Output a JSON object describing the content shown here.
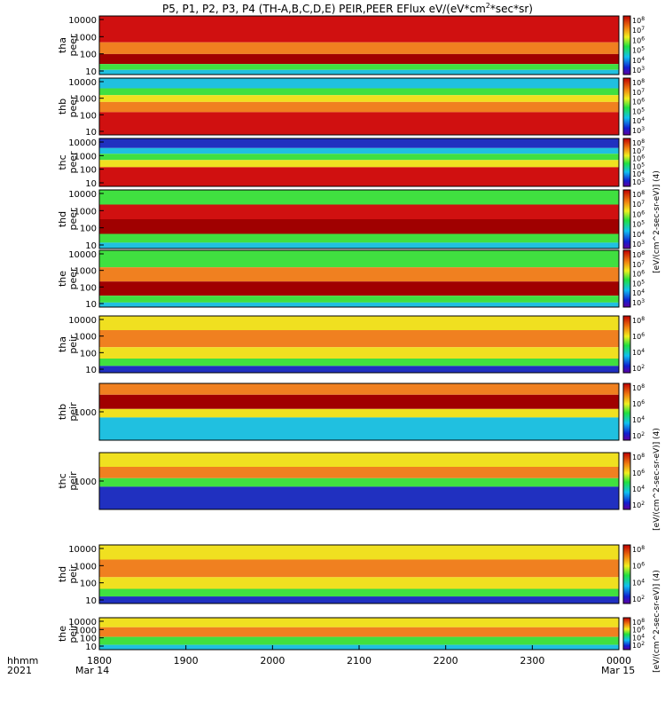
{
  "title": "P5, P1, P2, P3, P4 (TH-A,B,C,D,E) PEIR,PEER EFlux eV/(eV*cm",
  "title_sup": "2",
  "title_tail": "*sec*sr)",
  "colorbar_unit_peer": "[eV/(cm^2-sec-sr-eV)] (4)",
  "colorbar_unit_peir": "[eV/(cm^2-sec-sr-eV)] (4)",
  "colorbar_unit_last": "[eV/(cm^2-sec-sr-eV)] (4)",
  "footer": {
    "left_label_1": "hhmm",
    "left_label_2": "2021",
    "date_start": "Mar 14",
    "date_end": "Mar 15"
  },
  "chart_data": {
    "type": "heatmap",
    "x_ticks": [
      "1800",
      "1900",
      "2000",
      "2100",
      "2200",
      "2300",
      "0000"
    ],
    "x_range_hours": [
      18,
      24
    ],
    "colors": {
      "low": "#2030c0",
      "mid_low": "#20c0e0",
      "mid": "#40e040",
      "mid_high": "#f0e020",
      "high": "#f08020",
      "peak": "#d01010",
      "max": "#a00000"
    },
    "panels": [
      {
        "id": "tha-peer",
        "label_1": "tha",
        "label_2": "peer",
        "y_ticks": [
          "10000",
          "1000",
          "100",
          "10"
        ],
        "cb_ticks": [
          "10",
          "10",
          "10",
          "10",
          "10",
          "10"
        ],
        "cb_exps": [
          "8",
          "7",
          "6",
          "5",
          "4",
          "3"
        ]
      },
      {
        "id": "thb-peer",
        "label_1": "thb",
        "label_2": "peer",
        "y_ticks": [
          "10000",
          "1000",
          "100",
          "10"
        ],
        "cb_ticks": [
          "10",
          "10",
          "10",
          "10",
          "10",
          "10"
        ],
        "cb_exps": [
          "8",
          "7",
          "6",
          "5",
          "4",
          "3"
        ]
      },
      {
        "id": "thc-peer",
        "label_1": "thc",
        "label_2": "peer",
        "y_ticks": [
          "10000",
          "1000",
          "100",
          "10"
        ],
        "cb_ticks": [
          "10",
          "10",
          "10",
          "10",
          "10",
          "10"
        ],
        "cb_exps": [
          "8",
          "7",
          "6",
          "5",
          "4",
          "3"
        ]
      },
      {
        "id": "thd-peer",
        "label_1": "thd",
        "label_2": "peer",
        "y_ticks": [
          "10000",
          "1000",
          "100",
          "10"
        ],
        "cb_ticks": [
          "10",
          "10",
          "10",
          "10",
          "10",
          "10"
        ],
        "cb_exps": [
          "8",
          "7",
          "6",
          "5",
          "4",
          "3"
        ]
      },
      {
        "id": "the-peer",
        "label_1": "the",
        "label_2": "peer",
        "y_ticks": [
          "10000",
          "1000",
          "100",
          "10"
        ],
        "cb_ticks": [
          "10",
          "10",
          "10",
          "10",
          "10",
          "10"
        ],
        "cb_exps": [
          "8",
          "7",
          "6",
          "5",
          "4",
          "3"
        ]
      },
      {
        "id": "tha-peir",
        "label_1": "tha",
        "label_2": "peir",
        "y_ticks": [
          "10000",
          "1000",
          "100",
          "10"
        ],
        "cb_ticks": [
          "10",
          "10",
          "10",
          "10"
        ],
        "cb_exps": [
          "8",
          "6",
          "4",
          "2"
        ]
      },
      {
        "id": "thb-peir",
        "label_1": "thb",
        "label_2": "peir",
        "y_ticks": [
          "1000"
        ],
        "cb_ticks": [
          "10",
          "10",
          "10",
          "10"
        ],
        "cb_exps": [
          "8",
          "6",
          "4",
          "2"
        ]
      },
      {
        "id": "thc-peir",
        "label_1": "thc",
        "label_2": "peir",
        "y_ticks": [
          "1000"
        ],
        "cb_ticks": [
          "10",
          "10",
          "10",
          "10"
        ],
        "cb_exps": [
          "8",
          "6",
          "4",
          "2"
        ]
      },
      {
        "id": "thd-peir",
        "label_1": "thd",
        "label_2": "peir",
        "y_ticks": [
          "10000",
          "1000",
          "100",
          "10"
        ],
        "cb_ticks": [
          "10",
          "10",
          "10",
          "10"
        ],
        "cb_exps": [
          "8",
          "6",
          "4",
          "2"
        ]
      },
      {
        "id": "the-peir",
        "label_1": "the",
        "label_2": "peir",
        "y_ticks": [
          "10000",
          "1000",
          "100",
          "10"
        ],
        "cb_ticks": [
          "10",
          "10",
          "10",
          "10"
        ],
        "cb_exps": [
          "8",
          "6",
          "4",
          "2"
        ]
      }
    ]
  }
}
